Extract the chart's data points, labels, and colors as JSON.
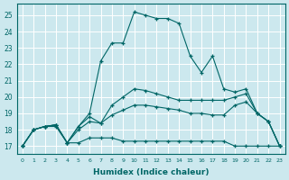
{
  "xlabel": "Humidex (Indice chaleur)",
  "xlim": [
    -0.5,
    23.5
  ],
  "ylim": [
    16.5,
    25.7
  ],
  "xticks": [
    0,
    1,
    2,
    3,
    4,
    5,
    6,
    7,
    8,
    9,
    10,
    11,
    12,
    13,
    14,
    15,
    16,
    17,
    18,
    19,
    20,
    21,
    22,
    23
  ],
  "yticks": [
    17,
    18,
    19,
    20,
    21,
    22,
    23,
    24,
    25
  ],
  "bg_color": "#cce8ee",
  "line_color": "#006666",
  "grid_color": "#ffffff",
  "lines": [
    {
      "x": [
        0,
        1,
        2,
        3,
        4,
        5,
        6,
        7,
        8,
        9,
        10,
        11,
        12,
        13,
        14,
        15,
        16,
        17,
        18,
        19,
        20,
        21,
        22,
        23
      ],
      "y": [
        17.0,
        18.0,
        18.2,
        18.2,
        17.2,
        17.2,
        17.5,
        17.5,
        17.5,
        17.3,
        17.3,
        17.3,
        17.3,
        17.3,
        17.3,
        17.3,
        17.3,
        17.3,
        17.3,
        17.0,
        17.0,
        17.0,
        17.0,
        17.0
      ]
    },
    {
      "x": [
        0,
        1,
        2,
        3,
        4,
        5,
        6,
        7,
        8,
        9,
        10,
        11,
        12,
        13,
        14,
        15,
        16,
        17,
        18,
        19,
        20,
        21,
        22,
        23
      ],
      "y": [
        17.0,
        18.0,
        18.2,
        18.3,
        17.2,
        18.0,
        18.5,
        18.4,
        18.9,
        19.2,
        19.5,
        19.5,
        19.4,
        19.3,
        19.2,
        19.0,
        19.0,
        18.9,
        18.9,
        19.5,
        19.7,
        19.0,
        18.5,
        17.0
      ]
    },
    {
      "x": [
        0,
        1,
        2,
        3,
        4,
        5,
        6,
        7,
        8,
        9,
        10,
        11,
        12,
        13,
        14,
        15,
        16,
        17,
        18,
        19,
        20,
        21,
        22,
        23
      ],
      "y": [
        17.0,
        18.0,
        18.2,
        18.3,
        17.2,
        18.2,
        18.8,
        18.4,
        19.5,
        20.0,
        20.5,
        20.4,
        20.2,
        20.0,
        19.8,
        19.8,
        19.8,
        19.8,
        19.8,
        20.0,
        20.2,
        19.0,
        18.5,
        17.0
      ]
    },
    {
      "x": [
        0,
        1,
        2,
        3,
        4,
        5,
        6,
        7,
        8,
        9,
        10,
        11,
        12,
        13,
        14,
        15,
        16,
        17,
        18,
        19,
        20,
        21,
        22,
        23
      ],
      "y": [
        17.0,
        18.0,
        18.2,
        18.3,
        17.2,
        18.2,
        19.0,
        22.2,
        23.3,
        23.3,
        25.2,
        25.0,
        24.8,
        24.8,
        24.5,
        22.5,
        21.5,
        22.5,
        20.5,
        20.3,
        20.5,
        19.0,
        18.5,
        17.0
      ]
    }
  ]
}
